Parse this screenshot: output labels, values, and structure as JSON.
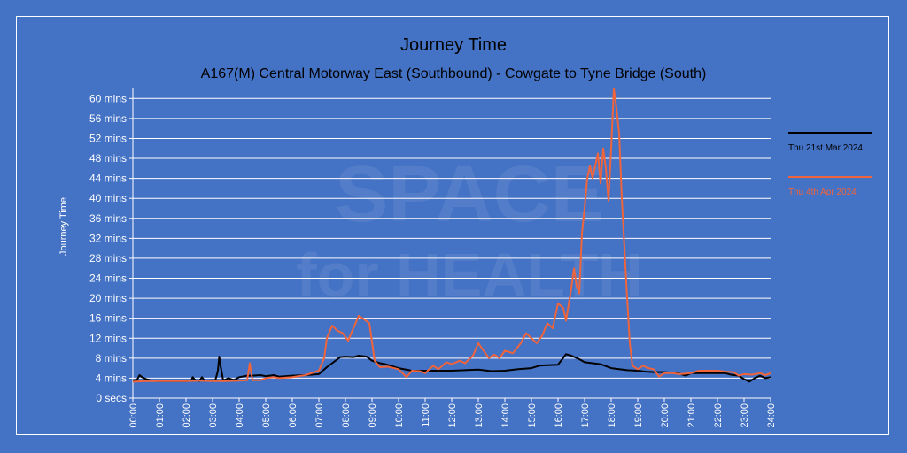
{
  "chart_data": {
    "type": "line",
    "title": "Journey Time",
    "subtitle": "A167(M) Central Motorway East (Southbound) - Cowgate to Tyne Bridge (South)",
    "ylabel": "Journey Time",
    "xlabel": "",
    "ylim": [
      0,
      62
    ],
    "xlim": [
      0,
      24
    ],
    "y_ticks": [
      {
        "v": 0,
        "label": "0 secs"
      },
      {
        "v": 4,
        "label": "4 mins"
      },
      {
        "v": 8,
        "label": "8 mins"
      },
      {
        "v": 12,
        "label": "12 mins"
      },
      {
        "v": 16,
        "label": "16 mins"
      },
      {
        "v": 20,
        "label": "20 mins"
      },
      {
        "v": 24,
        "label": "24 mins"
      },
      {
        "v": 28,
        "label": "28 mins"
      },
      {
        "v": 32,
        "label": "32 mins"
      },
      {
        "v": 36,
        "label": "36 mins"
      },
      {
        "v": 40,
        "label": "40 mins"
      },
      {
        "v": 44,
        "label": "44 mins"
      },
      {
        "v": 48,
        "label": "48 mins"
      },
      {
        "v": 52,
        "label": "52 mins"
      },
      {
        "v": 56,
        "label": "56 mins"
      },
      {
        "v": 60,
        "label": "60 mins"
      }
    ],
    "x_ticks": [
      "00:00",
      "01:00",
      "02:00",
      "03:00",
      "04:00",
      "05:00",
      "06:00",
      "07:00",
      "08:00",
      "09:00",
      "10:00",
      "11:00",
      "12:00",
      "13:00",
      "14:00",
      "15:00",
      "16:00",
      "17:00",
      "18:00",
      "19:00",
      "20:00",
      "21:00",
      "22:00",
      "23:00",
      "24:00"
    ],
    "grid": "horizontal",
    "legend_position": "right",
    "series": [
      {
        "name": "Thu 21st Mar 2024",
        "color": "#000000",
        "points": [
          [
            0.0,
            3.6
          ],
          [
            0.15,
            3.6
          ],
          [
            0.25,
            4.6
          ],
          [
            0.35,
            4.2
          ],
          [
            0.5,
            3.8
          ],
          [
            0.7,
            3.5
          ],
          [
            1.0,
            3.4
          ],
          [
            1.5,
            3.4
          ],
          [
            2.0,
            3.4
          ],
          [
            2.2,
            3.5
          ],
          [
            2.25,
            4.2
          ],
          [
            2.35,
            3.6
          ],
          [
            2.5,
            3.4
          ],
          [
            2.6,
            4.2
          ],
          [
            2.7,
            3.5
          ],
          [
            3.0,
            3.6
          ],
          [
            3.1,
            3.5
          ],
          [
            3.2,
            5.5
          ],
          [
            3.25,
            8.3
          ],
          [
            3.3,
            6.5
          ],
          [
            3.4,
            3.5
          ],
          [
            3.6,
            4.0
          ],
          [
            3.8,
            3.6
          ],
          [
            4.0,
            4.2
          ],
          [
            4.3,
            4.5
          ],
          [
            4.5,
            4.5
          ],
          [
            4.8,
            4.6
          ],
          [
            5.0,
            4.4
          ],
          [
            5.3,
            4.6
          ],
          [
            5.5,
            4.3
          ],
          [
            6.0,
            4.5
          ],
          [
            6.5,
            4.6
          ],
          [
            7.0,
            4.8
          ],
          [
            7.3,
            6.2
          ],
          [
            7.5,
            7.0
          ],
          [
            7.8,
            8.2
          ],
          [
            8.0,
            8.3
          ],
          [
            8.3,
            8.2
          ],
          [
            8.5,
            8.5
          ],
          [
            8.8,
            8.3
          ],
          [
            9.0,
            7.5
          ],
          [
            9.3,
            7.0
          ],
          [
            9.5,
            6.8
          ],
          [
            10.0,
            6.0
          ],
          [
            10.5,
            5.5
          ],
          [
            11.0,
            5.5
          ],
          [
            11.5,
            5.5
          ],
          [
            12.0,
            5.5
          ],
          [
            12.5,
            5.6
          ],
          [
            13.0,
            5.7
          ],
          [
            13.5,
            5.4
          ],
          [
            14.0,
            5.5
          ],
          [
            14.5,
            5.8
          ],
          [
            15.0,
            6.0
          ],
          [
            15.3,
            6.5
          ],
          [
            15.6,
            6.6
          ],
          [
            16.0,
            6.7
          ],
          [
            16.3,
            8.8
          ],
          [
            16.5,
            8.5
          ],
          [
            16.8,
            7.8
          ],
          [
            17.0,
            7.2
          ],
          [
            17.3,
            7.0
          ],
          [
            17.6,
            6.8
          ],
          [
            18.0,
            6.0
          ],
          [
            18.3,
            5.8
          ],
          [
            18.6,
            5.6
          ],
          [
            19.0,
            5.5
          ],
          [
            19.3,
            5.3
          ],
          [
            19.6,
            5.2
          ],
          [
            20.0,
            5.2
          ],
          [
            20.5,
            5.0
          ],
          [
            20.8,
            4.5
          ],
          [
            21.0,
            5.0
          ],
          [
            21.5,
            5.0
          ],
          [
            22.0,
            5.0
          ],
          [
            22.3,
            5.0
          ],
          [
            22.5,
            4.7
          ],
          [
            22.8,
            4.5
          ],
          [
            23.0,
            3.8
          ],
          [
            23.2,
            3.3
          ],
          [
            23.4,
            4.0
          ],
          [
            23.6,
            4.5
          ],
          [
            23.8,
            4.0
          ],
          [
            24.0,
            4.2
          ]
        ]
      },
      {
        "name": "Thu 4th Apr 2024",
        "color": "#f0643c",
        "points": [
          [
            0.0,
            3.3
          ],
          [
            0.5,
            3.4
          ],
          [
            1.0,
            3.4
          ],
          [
            1.5,
            3.4
          ],
          [
            2.0,
            3.4
          ],
          [
            2.5,
            3.5
          ],
          [
            3.0,
            3.4
          ],
          [
            3.5,
            3.4
          ],
          [
            4.0,
            3.5
          ],
          [
            4.3,
            3.6
          ],
          [
            4.4,
            7.0
          ],
          [
            4.5,
            3.6
          ],
          [
            4.8,
            3.6
          ],
          [
            5.0,
            4.0
          ],
          [
            5.3,
            4.2
          ],
          [
            5.5,
            4.0
          ],
          [
            6.0,
            4.2
          ],
          [
            6.5,
            4.6
          ],
          [
            7.0,
            5.5
          ],
          [
            7.2,
            8.0
          ],
          [
            7.3,
            12.0
          ],
          [
            7.5,
            14.5
          ],
          [
            7.7,
            13.5
          ],
          [
            7.9,
            13.0
          ],
          [
            8.1,
            11.5
          ],
          [
            8.3,
            14.0
          ],
          [
            8.5,
            16.5
          ],
          [
            8.7,
            15.8
          ],
          [
            8.9,
            15.0
          ],
          [
            9.1,
            7.5
          ],
          [
            9.3,
            6.2
          ],
          [
            9.6,
            6.3
          ],
          [
            10.0,
            5.8
          ],
          [
            10.3,
            4.2
          ],
          [
            10.5,
            5.5
          ],
          [
            10.8,
            5.4
          ],
          [
            11.0,
            5.0
          ],
          [
            11.3,
            6.5
          ],
          [
            11.5,
            5.8
          ],
          [
            11.8,
            7.2
          ],
          [
            12.0,
            6.8
          ],
          [
            12.3,
            7.5
          ],
          [
            12.5,
            7.0
          ],
          [
            12.8,
            8.5
          ],
          [
            13.0,
            11.0
          ],
          [
            13.2,
            9.5
          ],
          [
            13.4,
            8.0
          ],
          [
            13.6,
            8.7
          ],
          [
            13.8,
            8.0
          ],
          [
            14.0,
            9.5
          ],
          [
            14.3,
            9.0
          ],
          [
            14.6,
            11.0
          ],
          [
            14.8,
            13.0
          ],
          [
            15.0,
            12.0
          ],
          [
            15.2,
            11.0
          ],
          [
            15.4,
            12.5
          ],
          [
            15.6,
            15.0
          ],
          [
            15.8,
            14.0
          ],
          [
            16.0,
            19.0
          ],
          [
            16.2,
            18.0
          ],
          [
            16.3,
            15.5
          ],
          [
            16.5,
            22.0
          ],
          [
            16.6,
            26.0
          ],
          [
            16.7,
            22.5
          ],
          [
            16.8,
            21.0
          ],
          [
            16.9,
            33.0
          ],
          [
            17.0,
            38.0
          ],
          [
            17.1,
            44.0
          ],
          [
            17.2,
            46.5
          ],
          [
            17.3,
            44.0
          ],
          [
            17.5,
            49.0
          ],
          [
            17.6,
            43.0
          ],
          [
            17.7,
            50.0
          ],
          [
            17.8,
            46.0
          ],
          [
            17.9,
            39.5
          ],
          [
            18.0,
            50.0
          ],
          [
            18.1,
            62.0
          ],
          [
            18.2,
            58.0
          ],
          [
            18.3,
            53.0
          ],
          [
            18.4,
            40.0
          ],
          [
            18.5,
            30.0
          ],
          [
            18.6,
            20.0
          ],
          [
            18.7,
            11.0
          ],
          [
            18.8,
            6.5
          ],
          [
            19.0,
            5.8
          ],
          [
            19.2,
            6.5
          ],
          [
            19.4,
            6.0
          ],
          [
            19.6,
            5.8
          ],
          [
            19.8,
            4.3
          ],
          [
            20.0,
            5.0
          ],
          [
            20.3,
            5.0
          ],
          [
            20.6,
            4.8
          ],
          [
            21.0,
            5.0
          ],
          [
            21.3,
            5.5
          ],
          [
            21.6,
            5.5
          ],
          [
            22.0,
            5.5
          ],
          [
            22.3,
            5.3
          ],
          [
            22.6,
            5.2
          ],
          [
            22.8,
            4.5
          ],
          [
            23.0,
            4.8
          ],
          [
            23.3,
            4.7
          ],
          [
            23.6,
            5.0
          ],
          [
            23.8,
            4.6
          ],
          [
            24.0,
            5.0
          ]
        ]
      }
    ]
  }
}
